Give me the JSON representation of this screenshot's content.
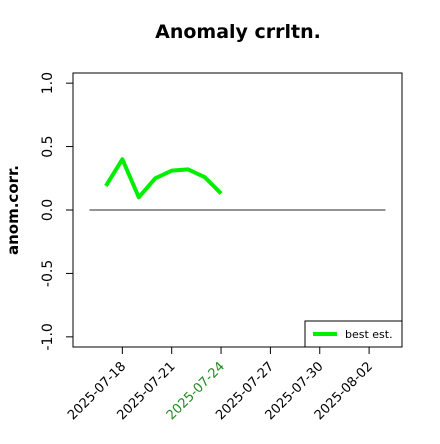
{
  "chart_data": {
    "type": "line",
    "title": "Anomaly crrltn.",
    "ylabel": "anom.corr.",
    "x": [
      "2025-07-17",
      "2025-07-18",
      "2025-07-19",
      "2025-07-20",
      "2025-07-21",
      "2025-07-22",
      "2025-07-23",
      "2025-07-24"
    ],
    "series": [
      {
        "name": "best est.",
        "color": "#00ee00",
        "values": [
          0.19,
          0.4,
          0.1,
          0.25,
          0.31,
          0.32,
          0.26,
          0.13
        ]
      }
    ],
    "xlim": [
      "2025-07-15",
      "2025-08-04"
    ],
    "xticks": [
      "2025-07-18",
      "2025-07-21",
      "2025-07-24",
      "2025-07-27",
      "2025-07-30",
      "2025-08-02"
    ],
    "highlight_xtick": "2025-07-24",
    "highlight_color": "#228b22",
    "ylim": [
      -1.08,
      1.08
    ],
    "yticks": [
      {
        "value": -1,
        "label": "-1.0"
      },
      {
        "value": -0.5,
        "label": "-0.5"
      },
      {
        "value": 0,
        "label": "0.0"
      },
      {
        "value": 0.5,
        "label": "0.5"
      },
      {
        "value": 1,
        "label": "1.0"
      }
    ],
    "reference_line": {
      "y": 0,
      "x": [
        "2025-07-16",
        "2025-08-03"
      ],
      "color": "#555555"
    },
    "legend": "bottomright"
  }
}
